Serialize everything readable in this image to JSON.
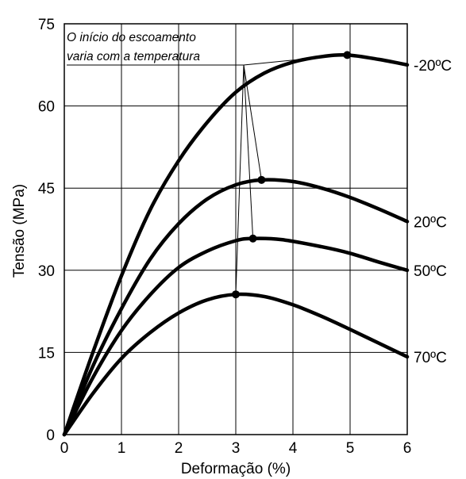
{
  "chart_data": {
    "type": "line",
    "title": "",
    "xlabel": "Deformação (%)",
    "ylabel": "Tensão (MPa)",
    "xlim": [
      0,
      6
    ],
    "ylim": [
      0,
      75
    ],
    "xticks": [
      0,
      1,
      2,
      3,
      4,
      5,
      6
    ],
    "yticks": [
      0,
      15,
      30,
      45,
      60,
      75
    ],
    "grid": true,
    "annotation": {
      "text_lines": [
        "O início do escoamento",
        "varia com a temperatura"
      ]
    },
    "series": [
      {
        "name": "-20ºC",
        "x": [
          0,
          0.5,
          1.0,
          1.5,
          2.0,
          2.5,
          3.0,
          3.5,
          4.0,
          4.5,
          4.95,
          5.5,
          6.0
        ],
        "y": [
          0,
          15,
          29,
          41,
          50,
          57,
          62.5,
          66,
          68,
          69,
          69.3,
          68.5,
          67.5
        ],
        "yield_point": {
          "x": 4.95,
          "y": 69.3
        }
      },
      {
        "name": "20ºC",
        "x": [
          0,
          0.5,
          1.0,
          1.5,
          2.0,
          2.5,
          3.0,
          3.45,
          4.0,
          4.5,
          5.0,
          5.5,
          6.0
        ],
        "y": [
          0,
          12.5,
          23,
          32,
          38.5,
          43,
          45.6,
          46.5,
          46.2,
          45,
          43.3,
          41.2,
          38.9
        ],
        "yield_point": {
          "x": 3.45,
          "y": 46.5
        }
      },
      {
        "name": "50ºC",
        "x": [
          0,
          0.5,
          1.0,
          1.5,
          2.0,
          2.5,
          3.0,
          3.3,
          3.8,
          4.5,
          5.0,
          5.5,
          6.0
        ],
        "y": [
          0,
          10.4,
          19,
          25.5,
          30.5,
          33.5,
          35.4,
          35.8,
          35.6,
          34.3,
          33.1,
          31.5,
          30
        ],
        "yield_point": {
          "x": 3.3,
          "y": 35.8
        }
      },
      {
        "name": "70ºC",
        "x": [
          0,
          0.5,
          1.0,
          1.5,
          2.0,
          2.5,
          3.0,
          3.5,
          4.0,
          4.5,
          5.0,
          5.5,
          6.0
        ],
        "y": [
          0,
          7.5,
          13.9,
          18.6,
          22.2,
          24.6,
          25.6,
          25.2,
          23.7,
          21.6,
          19.2,
          16.7,
          14.2
        ],
        "yield_point": {
          "x": 3.0,
          "y": 25.6
        }
      }
    ]
  }
}
